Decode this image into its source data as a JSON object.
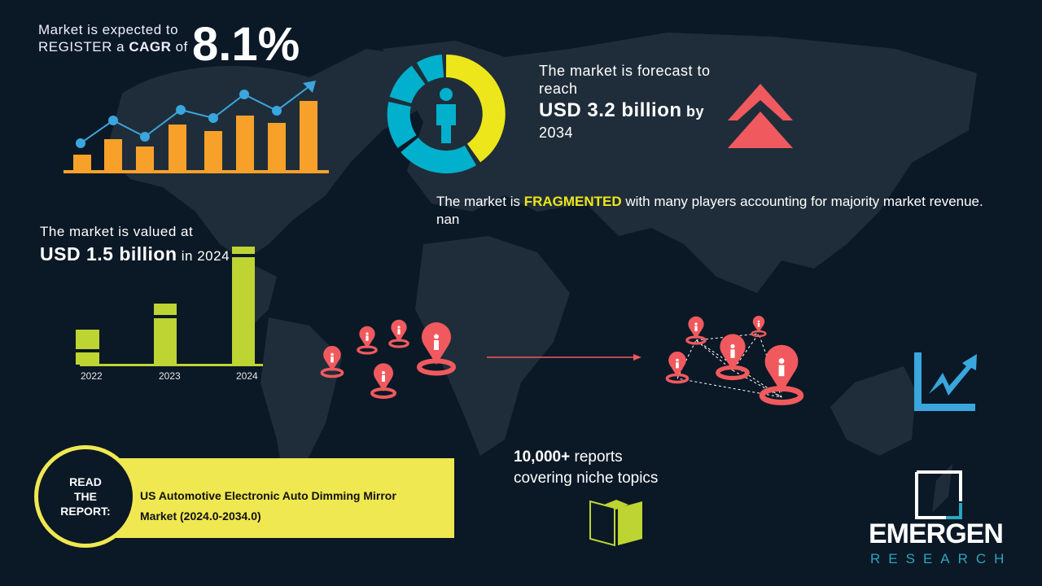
{
  "cagr": {
    "line1": "Market is expected to",
    "line2_pre": "REGISTER a ",
    "line2_bold": "CAGR",
    "line2_post": " of",
    "value": "8.1%"
  },
  "forecast": {
    "line1": "The market is forecast to reach",
    "amount": "USD 3.2 billion",
    "by": "by",
    "year": "2034"
  },
  "fragmented": {
    "pre": "The market is ",
    "highlight": "FRAGMENTED",
    "post": " with many players accounting for majority market revenue. nan"
  },
  "valued": {
    "line1": "The market is valued at",
    "amount": "USD 1.5 billion",
    "suffix": " in 2024"
  },
  "value_chart": {
    "years": [
      "2022",
      "2023",
      "2024"
    ]
  },
  "reports": {
    "bold": "10,000+",
    "line1_rest": " reports",
    "line2": "covering niche topics"
  },
  "read_report": {
    "circle_label": [
      "READ",
      "THE",
      "REPORT:"
    ],
    "title_line1": "US Automotive Electronic Auto Dimming Mirror",
    "title_line2": "Market (2024.0-2034.0)"
  },
  "logo": {
    "name": "EMERGEN",
    "sub": "RESEARCH"
  },
  "colors": {
    "background": "#0b1826",
    "map": "#1f2d3a",
    "orange": "#f7a12a",
    "blue": "#3aa6de",
    "green": "#bdd433",
    "yellow": "#ede61a",
    "cyan": "#00b0cc",
    "red": "#f05a5e"
  }
}
